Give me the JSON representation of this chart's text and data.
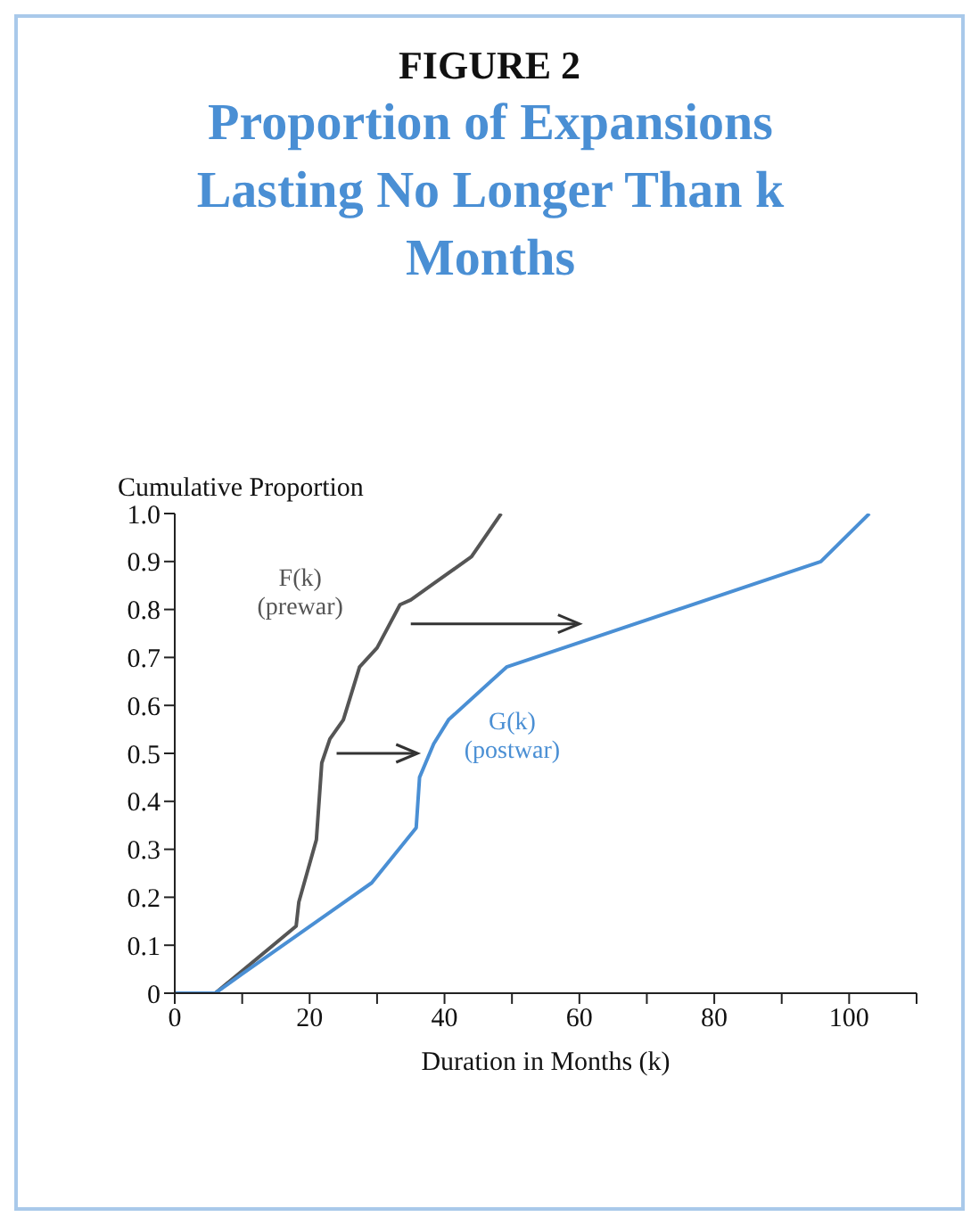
{
  "chart_data": {
    "type": "line",
    "title": "Proportion of Expansions Lasting No Longer Than k Months",
    "ylabel": "Cumulative Proportion",
    "xlabel": "Duration in Months (k)",
    "annotations": [
      "FIGURE 2"
    ],
    "series": [
      {
        "name": "F(k) (prewar)",
        "color": "#555555",
        "x": [
          0,
          6,
          18,
          18.4,
          21,
          21.8,
          23,
          25,
          27.4,
          30,
          33.4,
          35,
          38,
          44,
          48.4
        ],
        "values": [
          0,
          0,
          0.14,
          0.19,
          0.32,
          0.48,
          0.53,
          0.57,
          0.68,
          0.72,
          0.81,
          0.82,
          0.85,
          0.91,
          1.0
        ]
      },
      {
        "name": "G(k) (postwar)",
        "color": "#4a8fd4",
        "x": [
          0,
          6,
          10,
          29.2,
          35.8,
          36.3,
          38.4,
          40.6,
          49.2,
          95.8,
          103
        ],
        "values": [
          0,
          0,
          0.04,
          0.23,
          0.345,
          0.45,
          0.52,
          0.57,
          0.68,
          0.9,
          1.0
        ]
      }
    ],
    "xlim": [
      0,
      110
    ],
    "xticks": [
      0,
      {
        "value": 10,
        "label": null
      },
      20,
      {
        "value": 30,
        "label": null
      },
      40,
      {
        "value": 50,
        "label": null
      },
      60,
      {
        "value": 70,
        "label": null
      },
      80,
      {
        "value": 90,
        "label": null
      },
      100,
      {
        "value": 110,
        "label": null
      }
    ],
    "ylim": [
      0,
      1
    ],
    "yticks": [
      0,
      0.1,
      0.2,
      0.3,
      0.4,
      0.5,
      0.6,
      0.7,
      0.8,
      0.9,
      {
        "value": 1,
        "label": "1.0"
      }
    ],
    "grid": false,
    "marker": "none",
    "line_style": "solid"
  }
}
